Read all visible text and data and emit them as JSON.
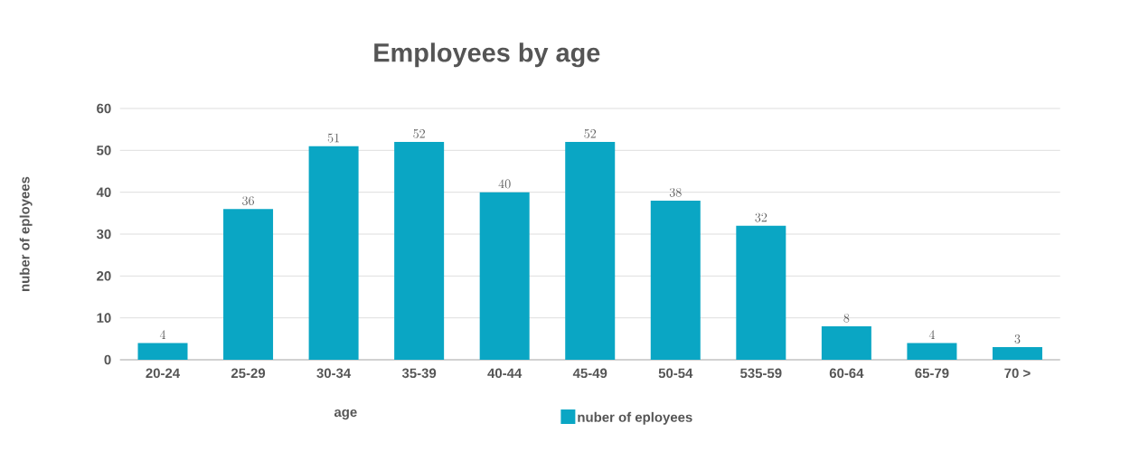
{
  "chart_data": {
    "type": "bar",
    "title": "Employees by age",
    "xlabel": "age",
    "ylabel": "nuber of eployees",
    "categories": [
      "20-24",
      "25-29",
      "30-34",
      "35-39",
      "40-44",
      "45-49",
      "50-54",
      "535-59",
      "60-64",
      "65-79",
      "70 >"
    ],
    "series": [
      {
        "name": "nuber of eployees",
        "color": "#0aa6c4",
        "values": [
          4,
          36,
          51,
          52,
          40,
          52,
          38,
          32,
          8,
          4,
          3
        ]
      }
    ],
    "ylim": [
      0,
      60
    ],
    "yticks": [
      0,
      10,
      20,
      30,
      40,
      50,
      60
    ],
    "grid": "y",
    "legend": "bottom",
    "data_labels": true
  }
}
